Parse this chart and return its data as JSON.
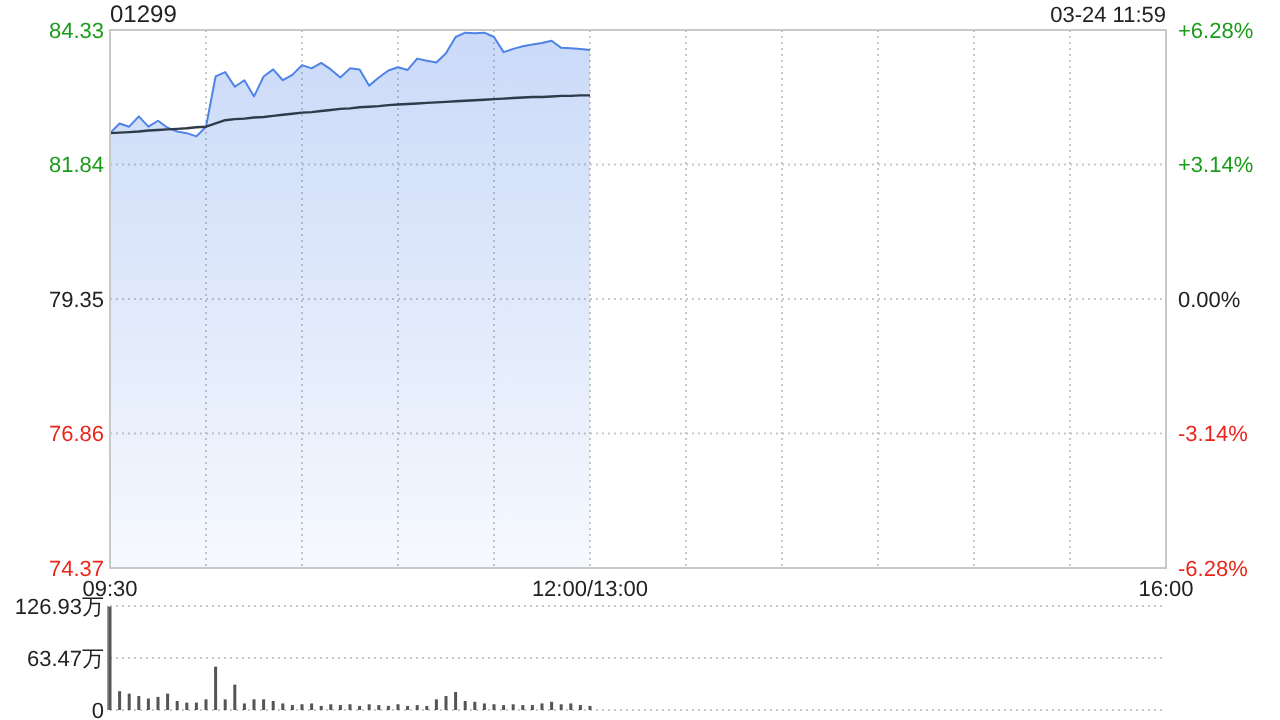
{
  "chart_data": [
    {
      "type": "area",
      "title": "01299",
      "annotations": [
        "03-24 11:59"
      ],
      "categories": [
        "09:30",
        null,
        null,
        null,
        null,
        null,
        null,
        null,
        null,
        null,
        null,
        null,
        null,
        null,
        null,
        null,
        null,
        null,
        null,
        null,
        null,
        null,
        null,
        null,
        null,
        null,
        null,
        null,
        null,
        null,
        null,
        null,
        null,
        null,
        null,
        null,
        null,
        null,
        null,
        null,
        null,
        null,
        null,
        null,
        null,
        null,
        null,
        null,
        null,
        null,
        "12:00/13:00",
        null,
        null,
        null,
        null,
        null,
        null,
        null,
        null,
        null,
        null,
        null,
        null,
        null,
        null,
        null,
        null,
        null,
        null,
        null,
        null,
        null,
        null,
        null,
        null,
        null,
        null,
        null,
        null,
        null,
        null,
        null,
        null,
        null,
        null,
        null,
        null,
        null,
        null,
        null,
        null,
        null,
        null,
        null,
        null,
        null,
        null,
        null,
        null,
        null,
        null,
        null,
        null,
        null,
        null,
        null,
        null,
        null,
        null,
        null,
        "16:00"
      ],
      "ylim": [
        74.37,
        84.33
      ],
      "yticks": [
        74.37,
        76.86,
        79.35,
        81.84,
        84.33
      ],
      "y2lim": [
        -6.28,
        6.28
      ],
      "y2ticks": [
        {
          "value": -6.28,
          "label": "-6.28%"
        },
        {
          "value": -3.14,
          "label": "-3.14%"
        },
        {
          "value": 0,
          "label": "0.00%"
        },
        {
          "value": 3.14,
          "label": "+3.14%"
        },
        {
          "value": 6.28,
          "label": "+6.28%"
        }
      ],
      "grid": true,
      "series": [
        {
          "type": "area",
          "color": "#4f83e8",
          "values": [
            82.42,
            82.6,
            82.54,
            82.73,
            82.54,
            82.65,
            82.52,
            82.45,
            82.42,
            82.36,
            82.54,
            83.47,
            83.55,
            83.28,
            83.4,
            83.1,
            83.47,
            83.6,
            83.4,
            83.5,
            83.68,
            83.62,
            83.72,
            83.6,
            83.45,
            83.62,
            83.6,
            83.3,
            83.45,
            83.58,
            83.64,
            83.59,
            83.8,
            83.76,
            83.73,
            83.9,
            84.2,
            84.28,
            84.27,
            84.28,
            84.2,
            83.92,
            83.98,
            84.03,
            84.06,
            84.09,
            84.13,
            84,
            83.99,
            83.98,
            83.96,
            null,
            null,
            null,
            null,
            null,
            null,
            null,
            null,
            null,
            null,
            null,
            null,
            null,
            null,
            null,
            null,
            null,
            null,
            null,
            null,
            null,
            null,
            null,
            null,
            null,
            null,
            null,
            null,
            null,
            null,
            null,
            null,
            null,
            null,
            null,
            null,
            null,
            null,
            null,
            null,
            null,
            null,
            null,
            null,
            null,
            null,
            null,
            null,
            null,
            null,
            null,
            null,
            null,
            null,
            null,
            null,
            null,
            null,
            null,
            null
          ]
        },
        {
          "type": "line",
          "color": "#2f3b4a",
          "values": [
            82.42,
            82.43,
            82.44,
            82.45,
            82.47,
            82.48,
            82.49,
            82.5,
            82.51,
            82.53,
            82.54,
            82.6,
            82.66,
            82.68,
            82.69,
            82.71,
            82.72,
            82.74,
            82.76,
            82.78,
            82.8,
            82.81,
            82.83,
            82.85,
            82.87,
            82.88,
            82.9,
            82.91,
            82.92,
            82.94,
            82.95,
            82.96,
            82.97,
            82.98,
            82.99,
            83,
            83.01,
            83.02,
            83.03,
            83.04,
            83.05,
            83.06,
            83.07,
            83.08,
            83.09,
            83.09,
            83.1,
            83.11,
            83.11,
            83.12,
            83.12,
            null,
            null,
            null,
            null,
            null,
            null,
            null,
            null,
            null,
            null,
            null,
            null,
            null,
            null,
            null,
            null,
            null,
            null,
            null,
            null,
            null,
            null,
            null,
            null,
            null,
            null,
            null,
            null,
            null,
            null,
            null,
            null,
            null,
            null,
            null,
            null,
            null,
            null,
            null,
            null,
            null,
            null,
            null,
            null,
            null,
            null,
            null,
            null,
            null,
            null,
            null,
            null,
            null,
            null,
            null,
            null,
            null,
            null,
            null,
            null
          ]
        }
      ]
    },
    {
      "type": "bar",
      "color": "#555555",
      "grid": "y",
      "categories": [
        null,
        null,
        null,
        null,
        null,
        null,
        null,
        null,
        null,
        null,
        null,
        null,
        null,
        null,
        null,
        null,
        null,
        null,
        null,
        null,
        null,
        null,
        null,
        null,
        null,
        null,
        null,
        null,
        null,
        null,
        null,
        null,
        null,
        null,
        null,
        null,
        null,
        null,
        null,
        null,
        null,
        null,
        null,
        null,
        null,
        null,
        null,
        null,
        null,
        null,
        null,
        null,
        null,
        null,
        null,
        null,
        null,
        null,
        null,
        null,
        null,
        null,
        null,
        null,
        null,
        null,
        null,
        null,
        null,
        null,
        null,
        null,
        null,
        null,
        null,
        null,
        null,
        null,
        null,
        null,
        null,
        null,
        null,
        null,
        null,
        null,
        null,
        null,
        null,
        null,
        null,
        null,
        null,
        null,
        null,
        null,
        null,
        null,
        null,
        null,
        null,
        null,
        null,
        null,
        null,
        null,
        null,
        null,
        null,
        null,
        null
      ],
      "ylim": [
        0,
        126.93
      ],
      "yticks": [
        0,
        {
          "value": 63.47,
          "label": "63.47万"
        },
        {
          "value": 126.93,
          "label": "126.93万"
        }
      ],
      "values": [
        126,
        23,
        20,
        17,
        14,
        16,
        20,
        11,
        9,
        9,
        13,
        53,
        13,
        31,
        8,
        13,
        13,
        11,
        8,
        6,
        7,
        8,
        5,
        7,
        6,
        7,
        5,
        7,
        6,
        5,
        7,
        5,
        6,
        5,
        13,
        17,
        22,
        11,
        10,
        8,
        7,
        6,
        7,
        6,
        6,
        8,
        10,
        7,
        8,
        6,
        5,
        null,
        null,
        null,
        null,
        null,
        null,
        null,
        null,
        null,
        null,
        null,
        null,
        null,
        null,
        null,
        null,
        null,
        null,
        null,
        null,
        null,
        null,
        null,
        null,
        null,
        null,
        null,
        null,
        null,
        null,
        null,
        null,
        null,
        null,
        null,
        null,
        null,
        null,
        null,
        null,
        null,
        null,
        null,
        null,
        null,
        null,
        null,
        null,
        null,
        null,
        null,
        null,
        null,
        null,
        null,
        null,
        null,
        null,
        null,
        null
      ]
    }
  ]
}
